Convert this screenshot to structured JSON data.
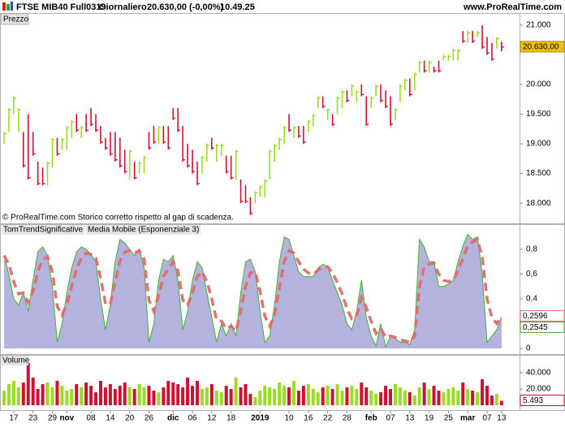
{
  "header": {
    "instrument": "FTSE MIB40 Full0319",
    "period": "Giornaliero",
    "price": "20.630,00 (-0,00%)",
    "time": "10.49.25",
    "site": "www.ProRealTime.com"
  },
  "chart_data": [
    {
      "type": "ohlc",
      "title": "Prezzo",
      "note": "© ProRealTime.com Storico corretto rispetto al gap di scadenza.",
      "up_color": "#99dd22",
      "down_color": "#cc1133",
      "last_color": "#f0c010",
      "high": [
        19200,
        19600,
        19800,
        19600,
        19200,
        19500,
        19200,
        18700,
        18600,
        18700,
        19100,
        19100,
        19100,
        19300,
        19400,
        19500,
        19300,
        19500,
        19600,
        19500,
        19300,
        19100,
        19200,
        19200,
        19100,
        18900,
        18900,
        18700,
        18700,
        18800,
        19200,
        19300,
        19300,
        19300,
        19300,
        19600,
        19600,
        19300,
        19000,
        18900,
        18700,
        18800,
        19000,
        19100,
        19000,
        19000,
        18800,
        18800,
        18900,
        18400,
        18300,
        18100,
        18200,
        18300,
        18400,
        18900,
        19000,
        19100,
        19300,
        19500,
        19300,
        19300,
        19300,
        19400,
        19500,
        19800,
        19800,
        19600,
        19500,
        19800,
        19900,
        19900,
        20000,
        19900,
        20000,
        19800,
        19800,
        20000,
        20000,
        19900,
        19800,
        19600,
        20000,
        20100,
        20100,
        20200,
        20400,
        20400,
        20400,
        20300,
        20400,
        20500,
        20500,
        20600,
        20600,
        20900,
        20900,
        20900,
        20900,
        21000,
        20800,
        20700,
        20800,
        20720
      ],
      "low": [
        19000,
        19200,
        19500,
        19200,
        18600,
        18400,
        18800,
        18300,
        18300,
        18300,
        18600,
        18800,
        18900,
        18900,
        19100,
        19200,
        19100,
        19200,
        19300,
        19200,
        19000,
        18900,
        18800,
        18700,
        18600,
        18500,
        18400,
        18400,
        18500,
        18500,
        18900,
        19000,
        19000,
        19000,
        18900,
        19400,
        19200,
        18700,
        18600,
        18500,
        18300,
        18500,
        18700,
        18900,
        18700,
        18800,
        18500,
        18400,
        18400,
        18000,
        18000,
        17800,
        18000,
        18100,
        18100,
        18400,
        18700,
        18900,
        19000,
        19200,
        19100,
        19100,
        19000,
        19200,
        19300,
        19600,
        19600,
        19400,
        19300,
        19500,
        19600,
        19700,
        19800,
        19700,
        19800,
        19300,
        19600,
        19800,
        19700,
        19600,
        19300,
        19400,
        19700,
        19900,
        19800,
        19900,
        20200,
        20200,
        20200,
        20200,
        20200,
        20400,
        20400,
        20400,
        20400,
        20700,
        20700,
        20700,
        20800,
        20600,
        20500,
        20400,
        20600,
        20560
      ],
      "close": [
        19170,
        19570,
        19770,
        19570,
        18630,
        18430,
        18830,
        18330,
        18330,
        18670,
        19070,
        18830,
        19070,
        19270,
        19370,
        19230,
        19270,
        19230,
        19330,
        19230,
        19030,
        18930,
        18830,
        18730,
        18630,
        18530,
        18870,
        18430,
        18670,
        18770,
        18930,
        19030,
        19270,
        19030,
        18930,
        19430,
        19230,
        18730,
        18630,
        18530,
        18330,
        18770,
        18970,
        18930,
        18970,
        18970,
        18530,
        18430,
        18870,
        18030,
        18030,
        17830,
        18170,
        18270,
        18370,
        18870,
        18970,
        19070,
        19270,
        19230,
        19270,
        19130,
        19030,
        19370,
        19470,
        19770,
        19630,
        19570,
        19330,
        19770,
        19870,
        19730,
        19970,
        19870,
        19830,
        19330,
        19770,
        19970,
        19730,
        19630,
        19330,
        19570,
        19970,
        20070,
        19830,
        20170,
        20370,
        20230,
        20370,
        20230,
        20230,
        20470,
        20470,
        20570,
        20570,
        20730,
        20870,
        20730,
        20870,
        20630,
        20530,
        20430,
        20770,
        20630
      ],
      "last_value_label": "20.630,00",
      "ylim": [
        17660,
        21190
      ],
      "yticks": [
        {
          "value": 18000,
          "label": "18.000"
        },
        {
          "value": 18500,
          "label": "18.500"
        },
        {
          "value": 19000,
          "label": "19.000"
        },
        {
          "value": 19500,
          "label": "19.500"
        },
        {
          "value": 20000,
          "label": "20.000"
        },
        {
          "value": 21000,
          "label": "21.000"
        }
      ]
    },
    {
      "type": "oscillator",
      "series": [
        {
          "name": "TomTrendSignificative",
          "color": "#44b030",
          "fill": "#b3b3de",
          "last_value_label": "0,2545",
          "values": [
            0.75,
            0.6,
            0.4,
            0.35,
            0.45,
            0.3,
            0.55,
            0.78,
            0.82,
            0.75,
            0.5,
            0.05,
            0.2,
            0.45,
            0.65,
            0.78,
            0.82,
            0.8,
            0.76,
            0.7,
            0.4,
            0.15,
            0.35,
            0.7,
            0.88,
            0.85,
            0.8,
            0.75,
            0.8,
            0.65,
            0.05,
            0.2,
            0.55,
            0.72,
            0.7,
            0.75,
            0.55,
            0.15,
            0.3,
            0.55,
            0.7,
            0.65,
            0.45,
            0.25,
            0.05,
            0.2,
            0.1,
            0.2,
            0.1,
            0.45,
            0.7,
            0.72,
            0.62,
            0.3,
            0.05,
            0.1,
            0.35,
            0.7,
            0.9,
            0.88,
            0.75,
            0.62,
            0.58,
            0.58,
            0.58,
            0.65,
            0.68,
            0.66,
            0.55,
            0.45,
            0.35,
            0.2,
            0.15,
            0.3,
            0.55,
            0.25,
            0.1,
            0.02,
            0.2,
            0.01,
            0.1,
            0.08,
            0.05,
            0.05,
            0.03,
            0.15,
            0.88,
            0.82,
            0.7,
            0.7,
            0.5,
            0.5,
            0.52,
            0.55,
            0.7,
            0.83,
            0.92,
            0.88,
            0.9,
            0.6,
            0.05,
            0.1,
            0.15,
            0.2545
          ]
        },
        {
          "name": "Media Mobile (Esponenziale 3)",
          "color": "#e06a6a",
          "dashed": true,
          "last_value_label": "0,2596",
          "values": [
            0.75,
            0.68,
            0.54,
            0.44,
            0.45,
            0.37,
            0.46,
            0.62,
            0.72,
            0.74,
            0.62,
            0.34,
            0.27,
            0.36,
            0.5,
            0.64,
            0.73,
            0.77,
            0.76,
            0.73,
            0.57,
            0.36,
            0.36,
            0.53,
            0.71,
            0.78,
            0.79,
            0.77,
            0.79,
            0.72,
            0.39,
            0.3,
            0.43,
            0.58,
            0.64,
            0.7,
            0.63,
            0.39,
            0.35,
            0.45,
            0.58,
            0.62,
            0.54,
            0.4,
            0.23,
            0.22,
            0.16,
            0.18,
            0.14,
            0.3,
            0.5,
            0.61,
            0.62,
            0.46,
            0.26,
            0.18,
            0.27,
            0.49,
            0.7,
            0.79,
            0.77,
            0.7,
            0.64,
            0.61,
            0.6,
            0.63,
            0.66,
            0.66,
            0.61,
            0.53,
            0.44,
            0.32,
            0.24,
            0.27,
            0.41,
            0.33,
            0.22,
            0.12,
            0.16,
            0.09,
            0.1,
            0.09,
            0.07,
            0.06,
            0.05,
            0.1,
            0.49,
            0.66,
            0.68,
            0.69,
            0.6,
            0.55,
            0.54,
            0.55,
            0.63,
            0.73,
            0.83,
            0.86,
            0.88,
            0.74,
            0.4,
            0.25,
            0.2,
            0.2596
          ]
        }
      ],
      "ylim": [
        -0.046,
        0.997
      ],
      "yticks": [
        0,
        {
          "value": 0.2,
          "label": "0,2"
        },
        {
          "value": 0.4,
          "label": "0,4"
        },
        {
          "value": 0.6,
          "label": "0,6"
        },
        {
          "value": 0.8,
          "label": "0,8"
        }
      ]
    },
    {
      "type": "volume",
      "title": "Volume",
      "values": [
        18000,
        26000,
        30000,
        22000,
        28000,
        52000,
        34000,
        20000,
        26000,
        28000,
        22000,
        30000,
        24000,
        18000,
        20000,
        26000,
        22000,
        28000,
        24000,
        16000,
        30000,
        22000,
        26000,
        20000,
        24000,
        28000,
        22000,
        20000,
        26000,
        22000,
        24000,
        18000,
        16000,
        22000,
        30000,
        28000,
        26000,
        22000,
        34000,
        24000,
        30000,
        20000,
        22000,
        26000,
        18000,
        16000,
        24000,
        20000,
        34000,
        22000,
        26000,
        14000,
        10000,
        18000,
        24000,
        22000,
        20000,
        28000,
        24000,
        22000,
        30000,
        18000,
        24000,
        26000,
        20000,
        16000,
        22000,
        24000,
        20000,
        26000,
        18000,
        22000,
        24000,
        20000,
        28000,
        22000,
        18000,
        14000,
        16000,
        24000,
        20000,
        26000,
        22000,
        18000,
        16000,
        12000,
        22000,
        28000,
        20000,
        24000,
        18000,
        16000,
        20000,
        22000,
        18000,
        28000,
        20000,
        18000,
        16000,
        32000,
        24000,
        12000,
        14000,
        5493
      ],
      "last_value_label": "5.493",
      "categories": [
        null,
        null,
        "17",
        null,
        null,
        null,
        "23",
        null,
        null,
        null,
        "29",
        null,
        null,
        "nov",
        null,
        null,
        null,
        null,
        "08",
        null,
        null,
        null,
        "14",
        null,
        null,
        null,
        "20",
        null,
        null,
        null,
        "26",
        null,
        null,
        null,
        null,
        "dic",
        null,
        null,
        null,
        "06",
        null,
        null,
        null,
        "12",
        null,
        null,
        null,
        "18",
        null,
        null,
        null,
        null,
        null,
        "2019",
        null,
        null,
        null,
        null,
        null,
        "10",
        null,
        null,
        null,
        "16",
        null,
        null,
        null,
        "22",
        null,
        null,
        null,
        "28",
        null,
        null,
        null,
        null,
        "feb",
        null,
        null,
        null,
        "07",
        null,
        null,
        null,
        "13",
        null,
        null,
        null,
        "19",
        null,
        null,
        null,
        "25",
        null,
        null,
        null,
        "mar",
        null,
        null,
        null,
        "07",
        null,
        null,
        "13"
      ],
      "ylim": [
        -6000,
        61000
      ],
      "yticks": [
        {
          "value": 20000,
          "label": "20.000"
        },
        {
          "value": 40000,
          "label": "40.000"
        }
      ]
    }
  ]
}
